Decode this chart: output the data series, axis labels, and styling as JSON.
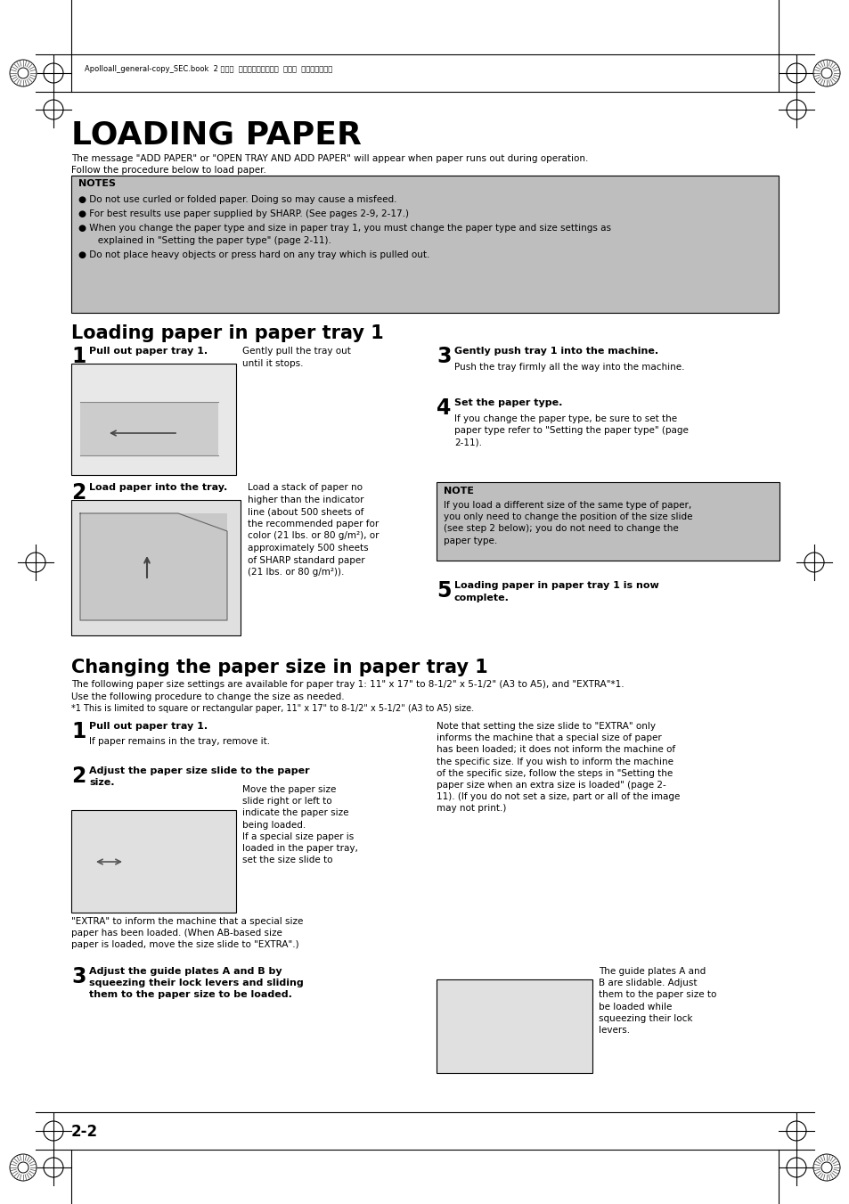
{
  "page_bg": "#ffffff",
  "title": "LOADING PAPER",
  "title_fontsize": 26,
  "subtitle1": "Loading paper in paper tray 1",
  "subtitle2": "Changing the paper size in paper tray 1",
  "subtitle_fontsize": 15,
  "body_fontsize": 7.5,
  "notes_bg": "#bebebe",
  "note_bg": "#bebebe",
  "header_text": "Apolloall_general-copy_SEC.book  2 ページ  ２００４年９月６日  月曜日  午後４時５７分",
  "footer_text": "2-2",
  "intro1": "The message \"ADD PAPER\" or \"OPEN TRAY AND ADD PAPER\" will appear when paper runs out during operation.",
  "intro2": "Follow the procedure below to load paper.",
  "notes_title": "NOTES",
  "note1": "● Do not use curled or folded paper. Doing so may cause a misfeed.",
  "note2": "● For best results use paper supplied by SHARP. (See pages 2-9, 2-17.)",
  "note3a": "● When you change the paper type and size in paper tray 1, you must change the paper type and size settings as",
  "note3b": "   explained in \"Setting the paper type\" (page 2-11).",
  "note4": "● Do not place heavy objects or press hard on any tray which is pulled out.",
  "sec1_step1_head": "Pull out paper tray 1.",
  "sec1_step1_body": "Gently pull the tray out\nuntil it stops.",
  "sec1_step2_head": "Load paper into the tray.",
  "sec1_step2_body": "Load a stack of paper no\nhigher than the indicator\nline (about 500 sheets of\nthe recommended paper for\ncolor (21 lbs. or 80 g/m²), or\napproximately 500 sheets\nof SHARP standard paper\n(21 lbs. or 80 g/m²)).",
  "sec1_step3_head": "Gently push tray 1 into the machine.",
  "sec1_step3_body": "Push the tray firmly all the way into the machine.",
  "sec1_step4_head": "Set the paper type.",
  "sec1_step4_body": "If you change the paper type, be sure to set the\npaper type refer to \"Setting the paper type\" (page\n2-11).",
  "sec1_note_title": "NOTE",
  "sec1_note_body": "If you load a different size of the same type of paper,\nyou only need to change the position of the size slide\n(see step 2 below); you do not need to change the\npaper type.",
  "sec1_step5_head": "Loading paper in paper tray 1 is now\ncomplete.",
  "sec2_intro1": "The following paper size settings are available for paper tray 1: 11\" x 17\" to 8-1/2\" x 5-1/2\" (A3 to A5), and \"EXTRA\"*1.",
  "sec2_intro2": "Use the following procedure to change the size as needed.",
  "sec2_intro3": "*1 This is limited to square or rectangular paper, 11\" x 17\" to 8-1/2\" x 5-1/2\" (A3 to A5) size.",
  "sec2_step1_head": "Pull out paper tray 1.",
  "sec2_step1_sub": "If paper remains in the tray, remove it.",
  "sec2_step2_head": "Adjust the paper size slide to the paper\nsize.",
  "sec2_step2_body": "Move the paper size\nslide right or left to\nindicate the paper size\nbeing loaded.\nIf a special size paper is\nloaded in the paper tray,\nset the size slide to",
  "sec2_step2_extra": "\"EXTRA\" to inform the machine that a special size\npaper has been loaded. (When AB-based size\npaper is loaded, move the size slide to \"EXTRA\".)",
  "sec2_step1_right": "Note that setting the size slide to \"EXTRA\" only\ninforms the machine that a special size of paper\nhas been loaded; it does not inform the machine of\nthe specific size. If you wish to inform the machine\nof the specific size, follow the steps in \"Setting the\npaper size when an extra size is loaded\" (page 2-\n11). (If you do not set a size, part or all of the image\nmay not print.)",
  "sec2_step3_head": "Adjust the guide plates A and B by\nsqueezing their lock levers and sliding\nthem to the paper size to be loaded.",
  "sec2_step3_right": "The guide plates A and\nB are slidable. Adjust\nthem to the paper size to\nbe loaded while\nsqueezing their lock\nlevers."
}
